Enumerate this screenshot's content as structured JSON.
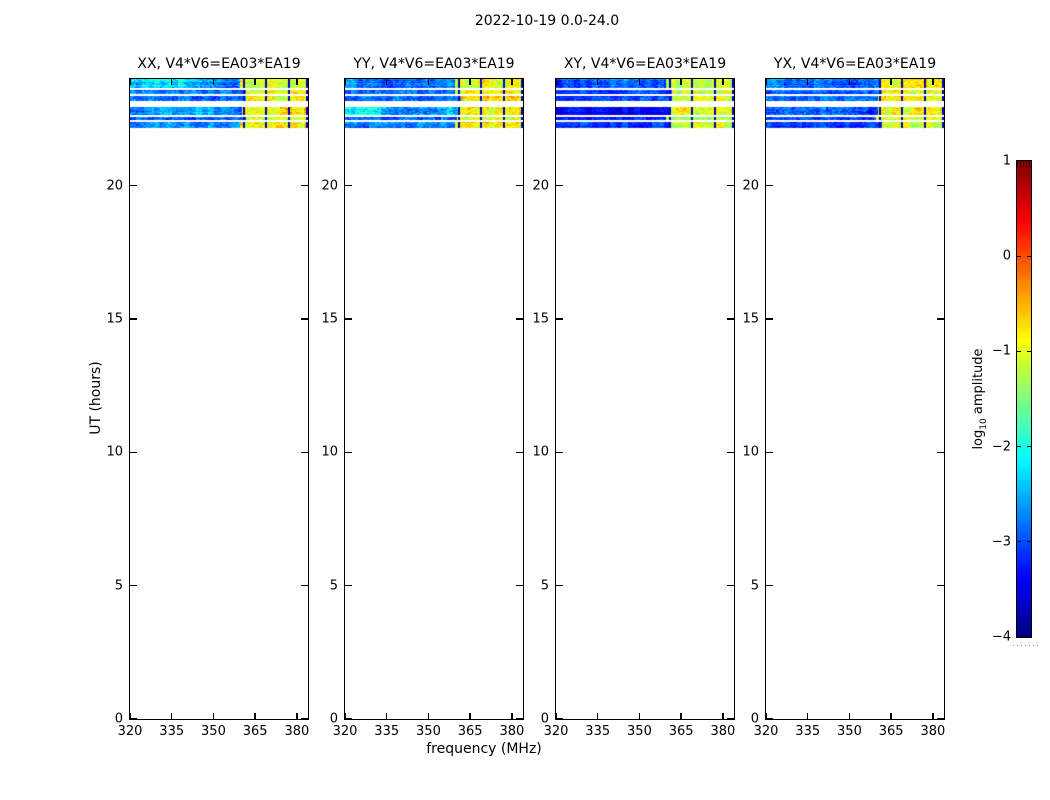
{
  "chart_data": {
    "type": "heatmap",
    "title": "2022-10-19 0.0-24.0",
    "xlabel": "frequency (MHz)",
    "ylabel": "UT (hours)",
    "xlim": [
      320,
      384
    ],
    "ylim": [
      0,
      24
    ],
    "x_ticks": [
      320,
      335,
      350,
      365,
      380
    ],
    "y_ticks": [
      0,
      5,
      10,
      15,
      20
    ],
    "grid": false,
    "colorbar": {
      "label_prefix": "log",
      "label_sub": "10",
      "label_suffix": " amplitude",
      "tick_labels": [
        "1",
        "0",
        "−1",
        "−2",
        "−3",
        "−4"
      ],
      "tick_values": [
        1,
        0,
        -1,
        -2,
        -3,
        -4
      ],
      "vmin": -4,
      "vmax": 1,
      "cmap": "jet"
    },
    "rfi": {
      "freq_start": 360.6,
      "separators": [
        360.7,
        368.7,
        376.7,
        383.4
      ],
      "separator_level": -3.75
    },
    "stripes_ut": [
      [
        23.68,
        24.0
      ],
      [
        23.44,
        23.59
      ],
      [
        23.18,
        23.36
      ],
      [
        22.65,
        22.95
      ],
      [
        22.46,
        22.58
      ],
      [
        22.16,
        22.39
      ]
    ],
    "panels": [
      {
        "pol": "XX",
        "title": "XX, V4*V6=EA03*EA19",
        "stripe_levels": [
          {
            "left": {
              "mean": -2.45,
              "spread": 0.45,
              "wave": 0.35
            },
            "right": {
              "mean": -0.95,
              "spread": 0.4
            }
          },
          {
            "left": {
              "mean": -2.85,
              "spread": 0.35
            },
            "right": {
              "mean": -1.0,
              "spread": 0.35
            }
          },
          {
            "left": {
              "mean": -2.75,
              "spread": 0.4
            },
            "right": {
              "mean": -0.9,
              "spread": 0.45
            }
          },
          {
            "left": {
              "mean": -2.7,
              "spread": 0.4,
              "wave": 0.2
            },
            "right": {
              "mean": -0.85,
              "spread": 0.45
            }
          },
          {
            "left": {
              "mean": -2.85,
              "spread": 0.4
            },
            "right": {
              "mean": -1.0,
              "spread": 0.4
            }
          },
          {
            "left": {
              "mean": -2.7,
              "spread": 0.45
            },
            "right": {
              "mean": -0.9,
              "spread": 0.5
            }
          }
        ]
      },
      {
        "pol": "YY",
        "title": "YY, V4*V6=EA03*EA19",
        "stripe_levels": [
          {
            "left": {
              "mean": -2.75,
              "spread": 0.4,
              "wave": 0.15
            },
            "right": {
              "mean": -0.95,
              "spread": 0.4
            }
          },
          {
            "left": {
              "mean": -2.9,
              "spread": 0.35
            },
            "right": {
              "mean": -0.95,
              "spread": 0.35
            }
          },
          {
            "left": {
              "mean": -2.8,
              "spread": 0.4
            },
            "right": {
              "mean": -0.7,
              "spread": 0.45
            }
          },
          {
            "left": {
              "mean": -2.45,
              "spread": 0.5,
              "wave": 0.3
            },
            "right": {
              "mean": -0.85,
              "spread": 0.5
            }
          },
          {
            "left": {
              "mean": -2.9,
              "spread": 0.4
            },
            "right": {
              "mean": -1.0,
              "spread": 0.4
            }
          },
          {
            "left": {
              "mean": -2.8,
              "spread": 0.4
            },
            "right": {
              "mean": -0.9,
              "spread": 0.45
            }
          }
        ]
      },
      {
        "pol": "XY",
        "title": "XY, V4*V6=EA03*EA19",
        "stripe_levels": [
          {
            "left": {
              "mean": -2.9,
              "spread": 0.4,
              "wave": 0.15
            },
            "right": {
              "mean": -1.1,
              "spread": 0.3
            }
          },
          {
            "left": {
              "mean": -3.1,
              "spread": 0.3
            },
            "right": {
              "mean": -1.15,
              "spread": 0.3
            }
          },
          {
            "left": {
              "mean": -3.0,
              "spread": 0.3
            },
            "right": {
              "mean": -1.1,
              "spread": 0.35
            }
          },
          {
            "left": {
              "mean": -3.5,
              "spread": 0.25
            },
            "right": {
              "mean": -1.0,
              "spread": 0.4
            }
          },
          {
            "left": {
              "mean": -3.2,
              "spread": 0.3
            },
            "right": {
              "mean": -1.15,
              "spread": 0.3
            }
          },
          {
            "left": {
              "mean": -3.1,
              "spread": 0.3
            },
            "right": {
              "mean": -1.05,
              "spread": 0.35
            }
          }
        ]
      },
      {
        "pol": "YX",
        "title": "YX, V4*V6=EA03*EA19",
        "stripe_levels": [
          {
            "left": {
              "mean": -2.9,
              "spread": 0.45,
              "wave": 0.15
            },
            "right": {
              "mean": -0.95,
              "spread": 0.4
            }
          },
          {
            "left": {
              "mean": -3.0,
              "spread": 0.35
            },
            "right": {
              "mean": -1.0,
              "spread": 0.35
            }
          },
          {
            "left": {
              "mean": -2.95,
              "spread": 0.35
            },
            "right": {
              "mean": -0.95,
              "spread": 0.4
            }
          },
          {
            "left": {
              "mean": -2.9,
              "spread": 0.5,
              "wave": 0.2
            },
            "right": {
              "mean": -0.9,
              "spread": 0.45
            }
          },
          {
            "left": {
              "mean": -3.05,
              "spread": 0.35
            },
            "right": {
              "mean": -1.0,
              "spread": 0.4
            }
          },
          {
            "left": {
              "mean": -3.0,
              "spread": 0.35
            },
            "right": {
              "mean": -0.95,
              "spread": 0.45
            }
          }
        ]
      }
    ]
  },
  "colors": {
    "axis": "#000000",
    "background": "#ffffff"
  }
}
